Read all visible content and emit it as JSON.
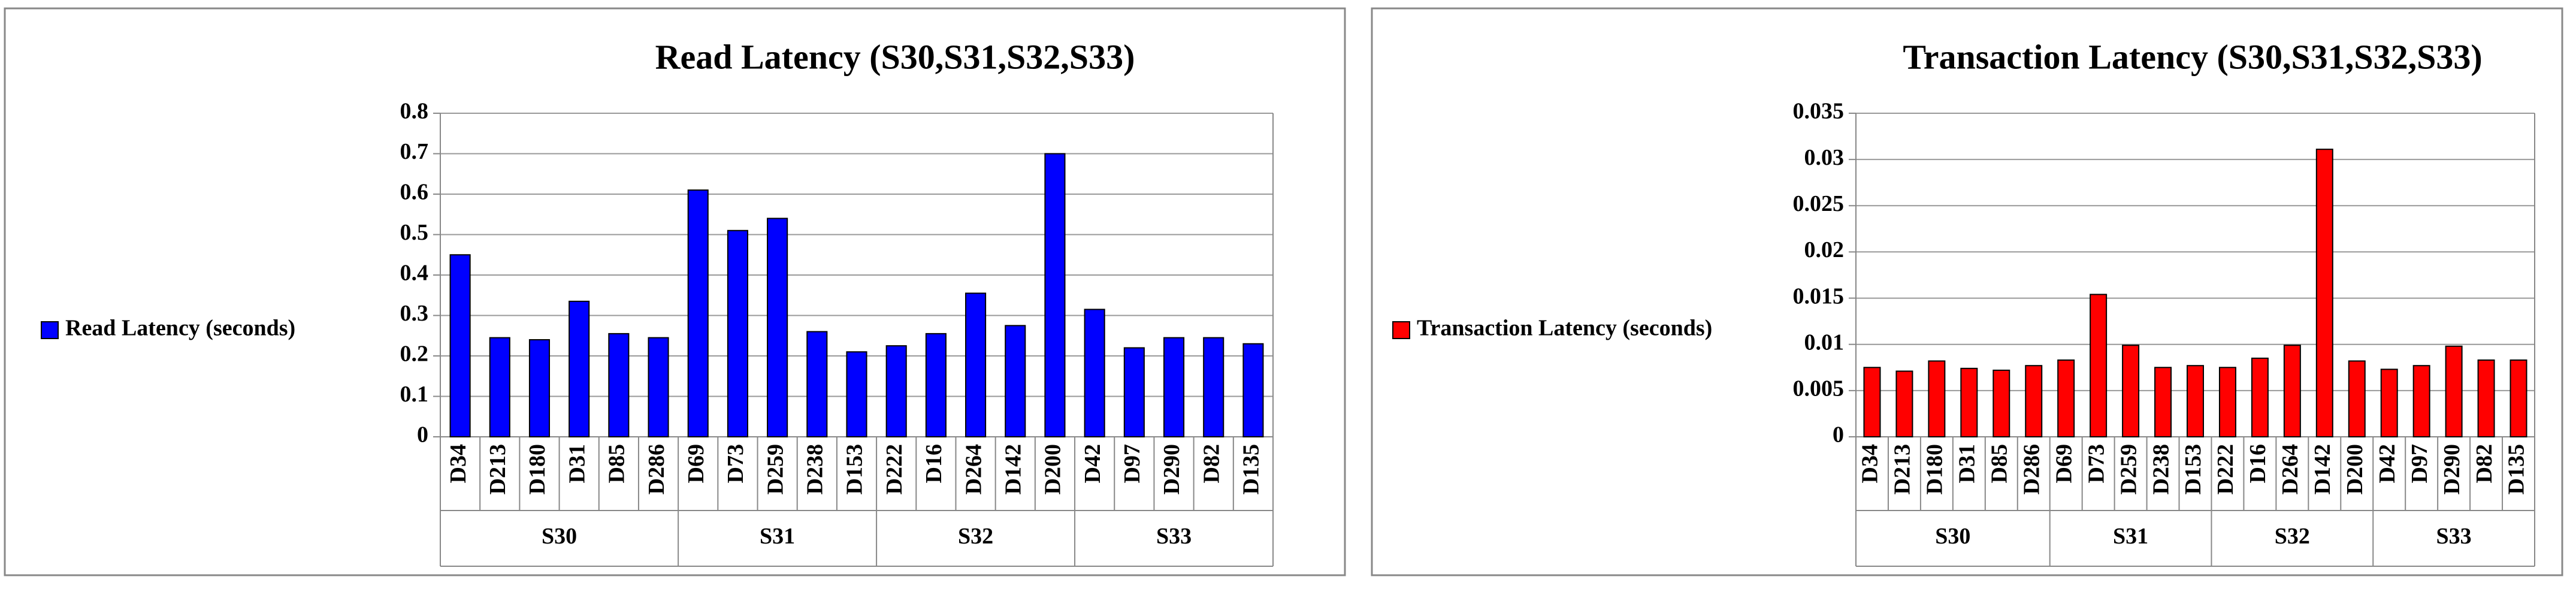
{
  "chart_data": [
    {
      "type": "bar",
      "title": "Read Latency (S30,S31,S32,S33)",
      "groups": [
        {
          "name": "S30",
          "categories": [
            "D34",
            "D213",
            "D180",
            "D31",
            "D85",
            "D286"
          ]
        },
        {
          "name": "S31",
          "categories": [
            "D69",
            "D73",
            "D259",
            "D238",
            "D153"
          ]
        },
        {
          "name": "S32",
          "categories": [
            "D222",
            "D16",
            "D264",
            "D142",
            "D200"
          ]
        },
        {
          "name": "S33",
          "categories": [
            "D42",
            "D97",
            "D290",
            "D82",
            "D135"
          ]
        }
      ],
      "series": [
        {
          "name": "Read Latency (seconds)",
          "color": "#0000ff",
          "values": [
            0.45,
            0.245,
            0.24,
            0.335,
            0.255,
            0.245,
            0.61,
            0.51,
            0.54,
            0.26,
            0.21,
            0.225,
            0.255,
            0.355,
            0.275,
            0.7,
            0.315,
            0.22,
            0.245,
            0.245,
            0.23
          ]
        }
      ],
      "ylim": [
        0,
        0.8
      ],
      "yticks": [
        0,
        0.1,
        0.2,
        0.3,
        0.4,
        0.5,
        0.6,
        0.7,
        0.8
      ],
      "grid": true,
      "legend": "left"
    },
    {
      "type": "bar",
      "title": "Transaction Latency (S30,S31,S32,S33)",
      "groups": [
        {
          "name": "S30",
          "categories": [
            "D34",
            "D213",
            "D180",
            "D31",
            "D85",
            "D286"
          ]
        },
        {
          "name": "S31",
          "categories": [
            "D69",
            "D73",
            "D259",
            "D238",
            "D153"
          ]
        },
        {
          "name": "S32",
          "categories": [
            "D222",
            "D16",
            "D264",
            "D142",
            "D200"
          ]
        },
        {
          "name": "S33",
          "categories": [
            "D42",
            "D97",
            "D290",
            "D82",
            "D135"
          ]
        }
      ],
      "series": [
        {
          "name": "Transaction Latency (seconds)",
          "color": "#ff0000",
          "values": [
            0.0075,
            0.0071,
            0.0082,
            0.0074,
            0.0072,
            0.0077,
            0.0083,
            0.0154,
            0.0099,
            0.0075,
            0.0077,
            0.0075,
            0.0085,
            0.0099,
            0.0311,
            0.0082,
            0.0073,
            0.0077,
            0.0098,
            0.0083,
            0.0083
          ]
        }
      ],
      "ylim": [
        0,
        0.035
      ],
      "yticks": [
        0,
        0.005,
        0.01,
        0.015,
        0.02,
        0.025,
        0.03,
        0.035
      ],
      "grid": true,
      "legend": "left"
    }
  ]
}
